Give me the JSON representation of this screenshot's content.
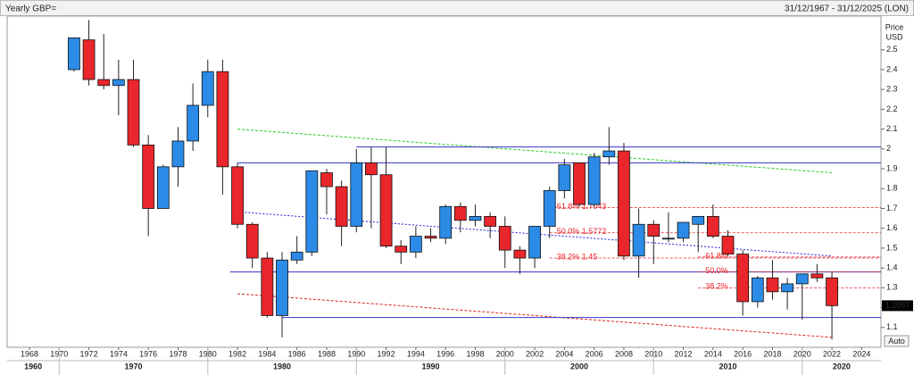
{
  "chart_data": {
    "type": "candlestick",
    "title": "Yearly GBP=",
    "date_range": "31/12/1967 - 31/12/2025 (LON)",
    "y_axis_label": [
      "Price",
      "USD"
    ],
    "button": "Auto",
    "up_color": "#2b8be6",
    "down_color": "#e8262b",
    "x": [
      1971,
      1972,
      1973,
      1974,
      1975,
      1976,
      1977,
      1978,
      1979,
      1980,
      1981,
      1982,
      1983,
      1984,
      1985,
      1986,
      1987,
      1988,
      1989,
      1990,
      1991,
      1992,
      1993,
      1994,
      1995,
      1996,
      1997,
      1998,
      1999,
      2000,
      2001,
      2002,
      2003,
      2004,
      2005,
      2006,
      2007,
      2008,
      2009,
      2010,
      2011,
      2012,
      2013,
      2014,
      2015,
      2016,
      2017,
      2018,
      2019,
      2020,
      2021,
      2022
    ],
    "open": [
      2.4,
      2.55,
      2.35,
      2.32,
      2.35,
      2.02,
      1.7,
      1.91,
      2.04,
      2.22,
      2.39,
      1.91,
      1.62,
      1.45,
      1.16,
      1.44,
      1.48,
      1.88,
      1.81,
      1.61,
      1.93,
      1.87,
      1.51,
      1.48,
      1.56,
      1.55,
      1.71,
      1.64,
      1.66,
      1.61,
      1.49,
      1.45,
      1.61,
      1.79,
      1.93,
      1.72,
      1.96,
      1.99,
      1.46,
      1.62,
      1.55,
      1.55,
      1.62,
      1.66,
      1.56,
      1.47,
      1.23,
      1.35,
      1.28,
      1.32,
      1.37,
      1.35
    ],
    "high": [
      2.56,
      2.65,
      2.58,
      2.45,
      2.45,
      2.07,
      1.92,
      2.11,
      2.33,
      2.45,
      2.45,
      1.93,
      1.63,
      1.48,
      1.48,
      1.56,
      1.89,
      1.9,
      1.84,
      2.0,
      2.01,
      2.01,
      1.54,
      1.61,
      1.6,
      1.72,
      1.73,
      1.72,
      1.68,
      1.66,
      1.51,
      1.61,
      1.81,
      1.95,
      1.93,
      1.98,
      2.11,
      2.03,
      1.7,
      1.64,
      1.68,
      1.63,
      1.66,
      1.72,
      1.59,
      1.49,
      1.36,
      1.44,
      1.35,
      1.37,
      1.42,
      1.38
    ],
    "low": [
      2.39,
      2.32,
      2.3,
      2.17,
      2.01,
      1.56,
      1.7,
      1.81,
      1.99,
      2.16,
      1.77,
      1.6,
      1.4,
      1.15,
      1.05,
      1.42,
      1.46,
      1.67,
      1.51,
      1.58,
      1.6,
      1.5,
      1.42,
      1.45,
      1.53,
      1.52,
      1.58,
      1.61,
      1.55,
      1.4,
      1.37,
      1.4,
      1.55,
      1.75,
      1.71,
      1.71,
      1.92,
      1.44,
      1.35,
      1.42,
      1.53,
      1.53,
      1.48,
      1.55,
      1.46,
      1.16,
      1.2,
      1.24,
      1.19,
      1.14,
      1.33,
      1.04
    ],
    "close": [
      2.56,
      2.35,
      2.32,
      2.35,
      2.02,
      1.7,
      1.91,
      2.04,
      2.22,
      2.39,
      1.91,
      1.62,
      1.45,
      1.16,
      1.44,
      1.48,
      1.89,
      1.81,
      1.61,
      1.93,
      1.87,
      1.51,
      1.48,
      1.56,
      1.55,
      1.71,
      1.64,
      1.66,
      1.61,
      1.49,
      1.45,
      1.61,
      1.79,
      1.92,
      1.72,
      1.96,
      1.99,
      1.46,
      1.62,
      1.56,
      1.55,
      1.63,
      1.66,
      1.56,
      1.47,
      1.23,
      1.35,
      1.28,
      1.32,
      1.37,
      1.35,
      1.21
    ],
    "xlim": [
      1966.5,
      2025.3
    ],
    "ylim": [
      1.0,
      2.67
    ],
    "xticks": [
      1968,
      1970,
      1972,
      1974,
      1976,
      1978,
      1980,
      1982,
      1984,
      1986,
      1988,
      1990,
      1992,
      1994,
      1996,
      1998,
      2000,
      2002,
      2004,
      2006,
      2008,
      2010,
      2012,
      2014,
      2016,
      2018,
      2020,
      2022,
      2024
    ],
    "yticks": [
      1.1,
      1.2,
      1.3,
      1.4,
      1.5,
      1.6,
      1.7,
      1.8,
      1.9,
      2,
      2.1,
      2.2,
      2.3,
      2.4,
      2.5
    ],
    "decade_labels": [
      1960,
      1970,
      1980,
      1990,
      2000,
      2010,
      2020
    ],
    "last_price": 1.2097,
    "lines": [
      {
        "color": "#22cc22",
        "dash": "3,2",
        "x1": 1982,
        "y1": 2.1,
        "x2": 2022,
        "y2": 1.88
      },
      {
        "color": "#2222dd",
        "dash": "2,2",
        "x1": 1982.5,
        "y1": 1.68,
        "x2": 2022,
        "y2": 1.46
      },
      {
        "color": "#dd2222",
        "dash": "3,2",
        "x1": 1982,
        "y1": 1.27,
        "x2": 2022,
        "y2": 1.05
      },
      {
        "color": "#3333cc",
        "dash": "",
        "x1": 1990,
        "y1": 2.01,
        "x2": 2025.3,
        "y2": 2.01
      },
      {
        "color": "#3333cc",
        "dash": "",
        "x1": 1982,
        "y1": 1.93,
        "x2": 2025.3,
        "y2": 1.93
      },
      {
        "color": "#3333cc",
        "dash": "",
        "x1": 1981.5,
        "y1": 1.38,
        "x2": 2025.3,
        "y2": 1.38
      },
      {
        "color": "#3333cc",
        "dash": "",
        "x1": 1985,
        "y1": 1.15,
        "x2": 2025.3,
        "y2": 1.15
      }
    ],
    "fib_levels": [
      {
        "label": "61.8% 1.7043",
        "level": 1.7043,
        "start": 2003
      },
      {
        "label": "50.0% 1.5772",
        "level": 1.5772,
        "start": 2003
      },
      {
        "label": "38.2% 1.45",
        "level": 1.45,
        "start": 2003
      },
      {
        "label": "61.8%",
        "level": 1.455,
        "start": 2013
      },
      {
        "label": "50.0%",
        "level": 1.38,
        "start": 2013
      },
      {
        "label": "38.2%",
        "level": 1.3,
        "start": 2013
      }
    ]
  }
}
